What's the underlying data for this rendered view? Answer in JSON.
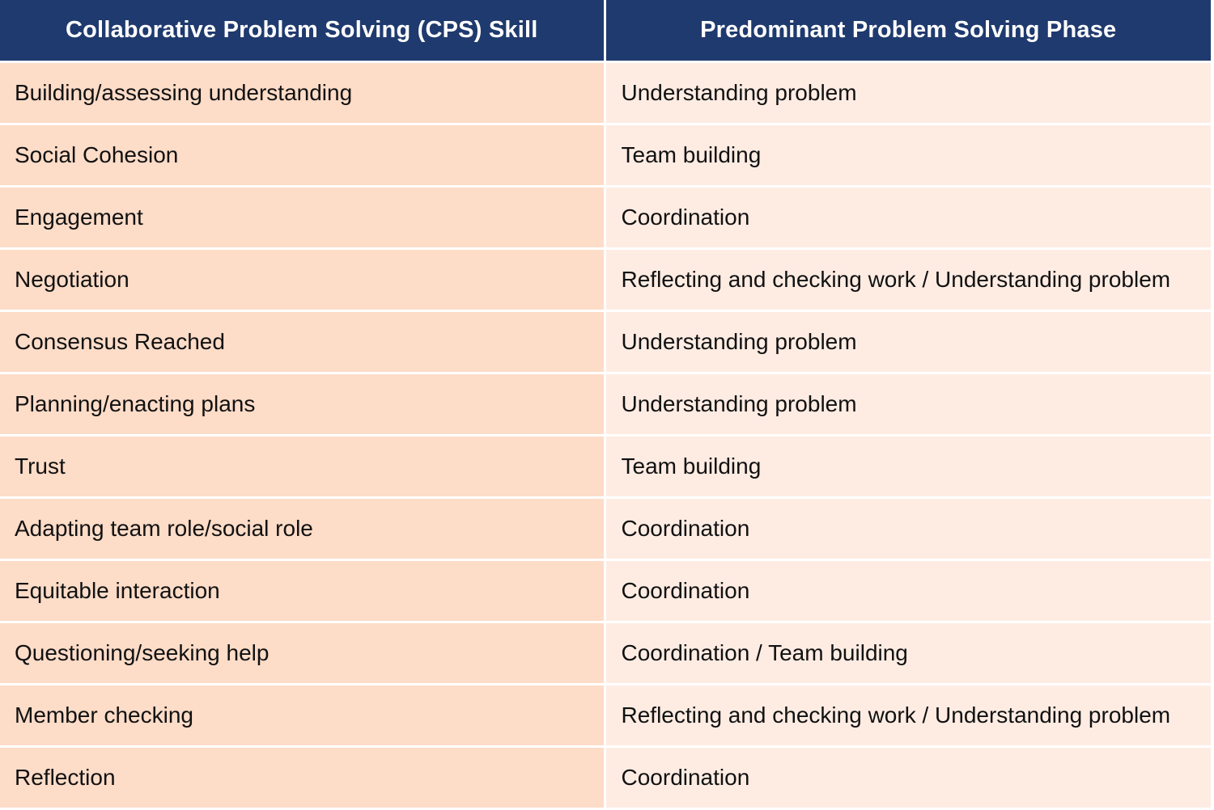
{
  "table": {
    "headers": [
      "Collaborative Problem Solving (CPS) Skill",
      "Predominant Problem Solving Phase"
    ],
    "rows": [
      {
        "skill": "Building/assessing understanding",
        "phase": "Understanding problem"
      },
      {
        "skill": "Social Cohesion",
        "phase": "Team building"
      },
      {
        "skill": "Engagement",
        "phase": "Coordination"
      },
      {
        "skill": "Negotiation",
        "phase": "Reflecting and checking work / Understanding problem"
      },
      {
        "skill": "Consensus Reached",
        "phase": "Understanding problem"
      },
      {
        "skill": "Planning/enacting plans",
        "phase": "Understanding problem"
      },
      {
        "skill": "Trust",
        "phase": "Team building"
      },
      {
        "skill": "Adapting team role/social role",
        "phase": "Coordination"
      },
      {
        "skill": "Equitable interaction",
        "phase": "Coordination"
      },
      {
        "skill": "Questioning/seeking help",
        "phase": "Coordination / Team building"
      },
      {
        "skill": "Member checking",
        "phase": "Reflecting and checking work / Understanding problem"
      },
      {
        "skill": "Reflection",
        "phase": "Coordination"
      }
    ]
  },
  "colors": {
    "header_bg": "#1f3a6e",
    "header_text": "#ffffff",
    "skill_cell_bg": "#fddcc8",
    "phase_cell_bg": "#feece3"
  }
}
